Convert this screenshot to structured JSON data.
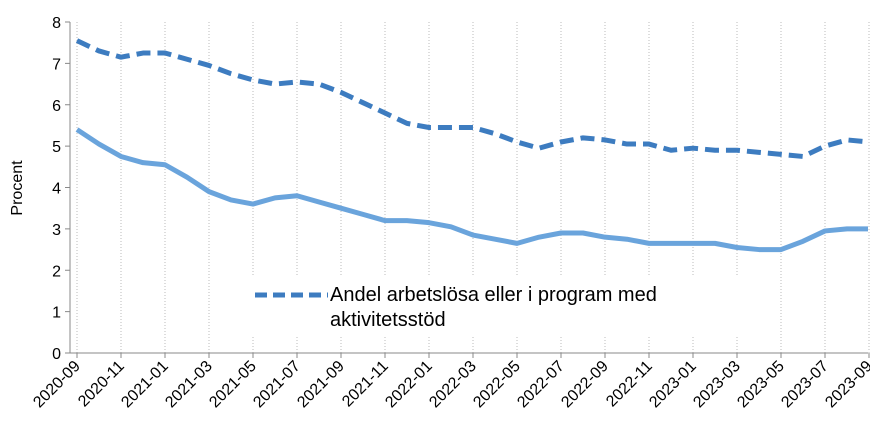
{
  "chart_data": {
    "type": "line",
    "y_label": "Procent",
    "categories": [
      "2020-09",
      null,
      "2020-11",
      null,
      "2021-01",
      null,
      "2021-03",
      null,
      "2021-05",
      null,
      "2021-07",
      null,
      "2021-09",
      null,
      "2021-11",
      null,
      "2022-01",
      null,
      "2022-03",
      null,
      "2022-05",
      null,
      "2022-07",
      null,
      "2022-09",
      null,
      "2022-11",
      null,
      "2023-01",
      null,
      "2023-03",
      null,
      "2023-05",
      null,
      "2023-07",
      null,
      "2023-09"
    ],
    "series": [
      {
        "name": "Andel arbetslösa eller i program med aktivitetsstöd",
        "color": "#3d7cc0",
        "dashed": true,
        "values": [
          7.55,
          7.3,
          7.15,
          7.25,
          7.25,
          7.1,
          6.95,
          6.75,
          6.6,
          6.5,
          6.55,
          6.5,
          6.3,
          6.05,
          5.8,
          5.55,
          5.45,
          5.45,
          5.45,
          5.3,
          5.1,
          4.95,
          5.1,
          5.2,
          5.15,
          5.05,
          5.05,
          4.9,
          4.95,
          4.9,
          4.9,
          4.85,
          4.8,
          4.75,
          5.0,
          5.15,
          5.1
        ]
      },
      {
        "color": "#6aa4dc",
        "dashed": false,
        "values": [
          5.4,
          5.05,
          4.75,
          4.6,
          4.55,
          4.25,
          3.9,
          3.7,
          3.6,
          3.75,
          3.8,
          3.65,
          3.5,
          3.35,
          3.2,
          3.2,
          3.15,
          3.05,
          2.85,
          2.75,
          2.65,
          2.8,
          2.9,
          2.9,
          2.8,
          2.75,
          2.65,
          2.65,
          2.65,
          2.65,
          2.55,
          2.5,
          2.5,
          2.7,
          2.95,
          3.0,
          3.0
        ]
      }
    ],
    "ylim": [
      0,
      8
    ],
    "yticks": [
      0,
      1,
      2,
      3,
      4,
      5,
      6,
      7,
      8
    ],
    "grid": true
  }
}
